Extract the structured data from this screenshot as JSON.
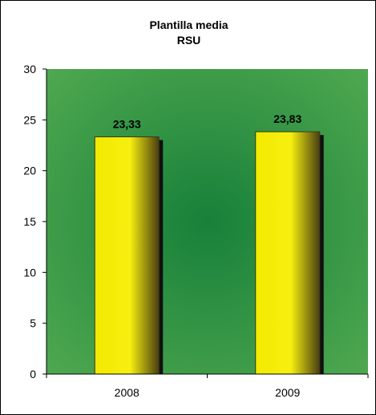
{
  "chart_data": {
    "type": "bar",
    "title": "Plantilla media",
    "subtitle": "RSU",
    "categories": [
      "2008",
      "2009"
    ],
    "series": [
      {
        "values": [
          23.33,
          23.83
        ],
        "labels": [
          "23,33",
          "23,83"
        ]
      }
    ],
    "ylim": [
      0,
      30
    ],
    "yticks": [
      0,
      5,
      10,
      15,
      20,
      25,
      30
    ],
    "xlabel": "",
    "ylabel": "",
    "grid": false,
    "legend": "none",
    "colors": {
      "plot_background_center": "#17803a",
      "plot_background_edge": "#4fa84f",
      "bar_fill": "#f2ea00",
      "bar_shade": "#4a3f10",
      "bar_shadow": "#111111",
      "axis": "#000000"
    }
  }
}
